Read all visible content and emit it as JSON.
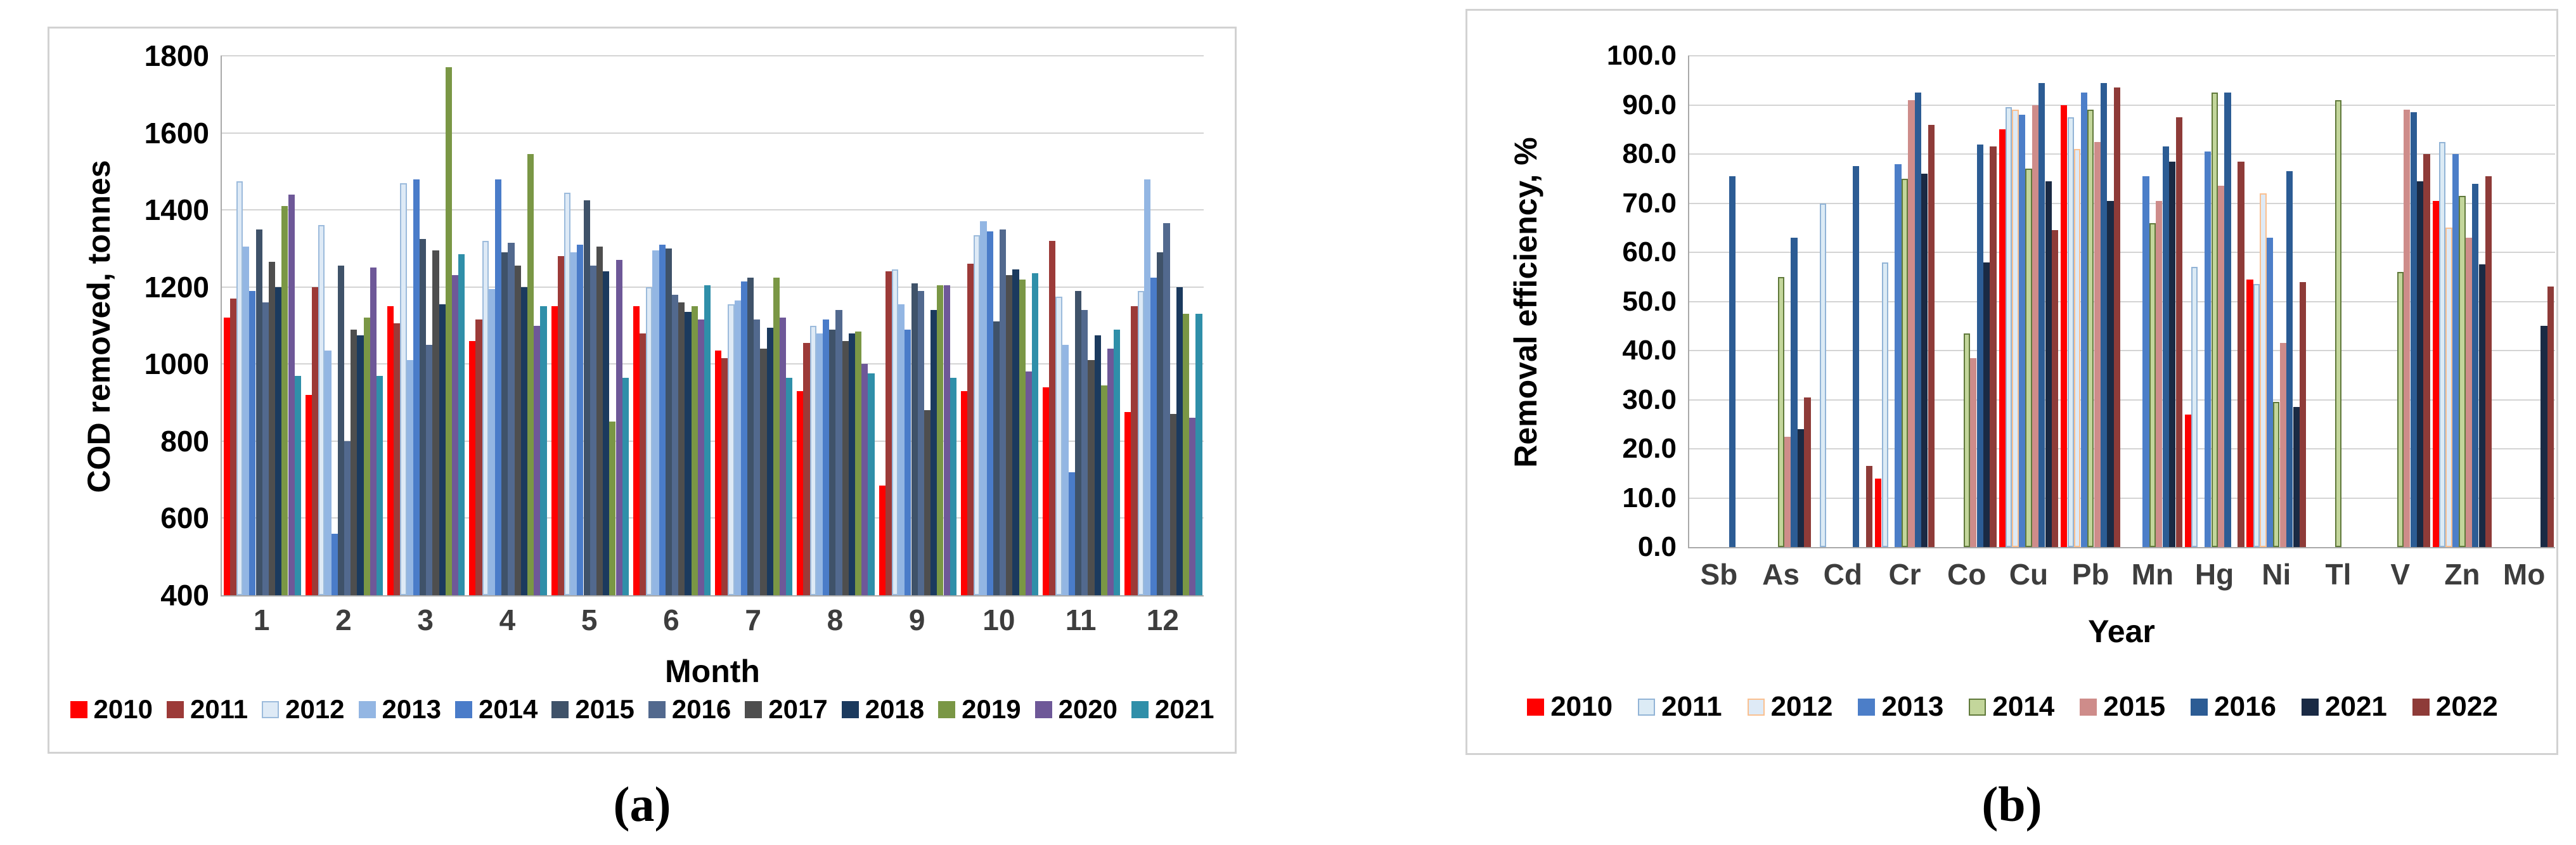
{
  "captions": {
    "a": "(a)",
    "b": "(b)"
  },
  "chart_data": [
    {
      "type": "bar",
      "title": "",
      "ylabel": "COD removed, tonnes",
      "xlabel": "Month",
      "ylim": [
        400,
        1800
      ],
      "ytick_step": 200,
      "ytick_decimals": 0,
      "grid": true,
      "legend_position": "bottom",
      "categories": [
        "1",
        "2",
        "3",
        "4",
        "5",
        "6",
        "7",
        "8",
        "9",
        "10",
        "11",
        "12"
      ],
      "series": [
        {
          "name": "2010",
          "color": "#ff0000",
          "values": [
            1120,
            920,
            1150,
            1060,
            1150,
            1150,
            1035,
            930,
            685,
            930,
            940,
            875
          ]
        },
        {
          "name": "2011",
          "color": "#9c3a38",
          "values": [
            1170,
            1200,
            1105,
            1115,
            1280,
            1080,
            1015,
            1055,
            1240,
            1260,
            1320,
            1150
          ]
        },
        {
          "name": "2012",
          "color": "#deeaf6",
          "border": "#9cbbdc",
          "values": [
            1475,
            1360,
            1470,
            1320,
            1445,
            1200,
            1155,
            1100,
            1245,
            1335,
            1175,
            1190
          ]
        },
        {
          "name": "2013",
          "color": "#93b6e3",
          "values": [
            1305,
            1035,
            1010,
            1195,
            1290,
            1295,
            1165,
            1080,
            1155,
            1370,
            1050,
            1480
          ]
        },
        {
          "name": "2014",
          "color": "#4a7cc9",
          "values": [
            1190,
            560,
            1480,
            1480,
            1310,
            1310,
            1215,
            1115,
            1090,
            1345,
            720,
            1225
          ]
        },
        {
          "name": "2015",
          "color": "#3f5269",
          "values": [
            1350,
            1255,
            1325,
            1290,
            1425,
            1300,
            1225,
            1090,
            1210,
            1110,
            1190,
            1290
          ]
        },
        {
          "name": "2016",
          "color": "#52698e",
          "values": [
            1160,
            800,
            1050,
            1315,
            1255,
            1180,
            1115,
            1140,
            1190,
            1350,
            1140,
            1365
          ]
        },
        {
          "name": "2017",
          "color": "#4e4e4e",
          "values": [
            1265,
            1090,
            1295,
            1255,
            1305,
            1160,
            1040,
            1060,
            880,
            1230,
            1010,
            870
          ]
        },
        {
          "name": "2018",
          "color": "#1b3a5e",
          "values": [
            1200,
            1075,
            1155,
            1200,
            1240,
            1135,
            1095,
            1080,
            1140,
            1245,
            1075,
            1200
          ]
        },
        {
          "name": "2019",
          "color": "#7a9745",
          "values": [
            1410,
            1120,
            1770,
            1545,
            850,
            1150,
            1225,
            1085,
            1205,
            1220,
            945,
            1130
          ]
        },
        {
          "name": "2020",
          "color": "#6e5898",
          "values": [
            1440,
            1250,
            1230,
            1100,
            1270,
            1115,
            1120,
            1000,
            1205,
            980,
            1040,
            860
          ]
        },
        {
          "name": "2021",
          "color": "#2f8fa9",
          "values": [
            970,
            970,
            1285,
            1150,
            965,
            1205,
            965,
            975,
            965,
            1235,
            1090,
            1130
          ]
        }
      ]
    },
    {
      "type": "bar",
      "title": "",
      "ylabel": "Removal efficiency, %",
      "xlabel": "Year",
      "ylim": [
        0,
        100
      ],
      "ytick_step": 10,
      "ytick_decimals": 1,
      "grid": true,
      "legend_position": "bottom",
      "categories": [
        "Sb",
        "As",
        "Cd",
        "Cr",
        "Co",
        "Cu",
        "Pb",
        "Mn",
        "Hg",
        "Ni",
        "Tl",
        "V",
        "Zn",
        "Mo"
      ],
      "series": [
        {
          "name": "2010",
          "color": "#ff0000",
          "values": [
            null,
            null,
            null,
            14,
            null,
            85,
            90,
            null,
            27,
            54.5,
            null,
            null,
            70.5,
            null
          ]
        },
        {
          "name": "2011",
          "color": "#dcebf5",
          "border": "#92b4d6",
          "values": [
            null,
            null,
            70,
            58,
            null,
            89.5,
            87.5,
            null,
            57,
            53.5,
            null,
            null,
            82.5,
            null
          ]
        },
        {
          "name": "2012",
          "color": "#deeaf6",
          "border": "#fac090",
          "values": [
            null,
            null,
            null,
            null,
            null,
            89,
            81,
            null,
            null,
            72,
            null,
            null,
            65,
            null
          ]
        },
        {
          "name": "2013",
          "color": "#4c7ec8",
          "values": [
            null,
            null,
            null,
            78,
            null,
            88,
            92.5,
            75.5,
            80.5,
            63,
            null,
            null,
            80,
            null
          ]
        },
        {
          "name": "2014",
          "color": "#c3d69b",
          "border": "#60793b",
          "values": [
            null,
            55,
            null,
            75,
            43.5,
            77,
            89,
            66,
            92.5,
            29.5,
            91,
            56,
            71.5,
            null
          ]
        },
        {
          "name": "2015",
          "color": "#ce8c8a",
          "values": [
            null,
            22.5,
            null,
            91,
            38.5,
            90,
            82.5,
            70.5,
            73.5,
            41.5,
            null,
            89,
            63,
            null
          ]
        },
        {
          "name": "2016",
          "color": "#2c5c94",
          "values": [
            75.5,
            63,
            77.5,
            92.5,
            82,
            94.5,
            94.5,
            81.5,
            92.5,
            76.5,
            null,
            88.5,
            74,
            null
          ]
        },
        {
          "name": "2021",
          "color": "#1a2a44",
          "values": [
            null,
            24,
            null,
            76,
            58,
            74.5,
            70.5,
            78.5,
            null,
            28.5,
            null,
            74.5,
            57.5,
            45
          ]
        },
        {
          "name": "2022",
          "color": "#8e3b38",
          "values": [
            null,
            30.5,
            16.5,
            86,
            81.5,
            64.5,
            93.5,
            87.5,
            78.5,
            54,
            null,
            80,
            75.5,
            53
          ]
        }
      ]
    }
  ]
}
